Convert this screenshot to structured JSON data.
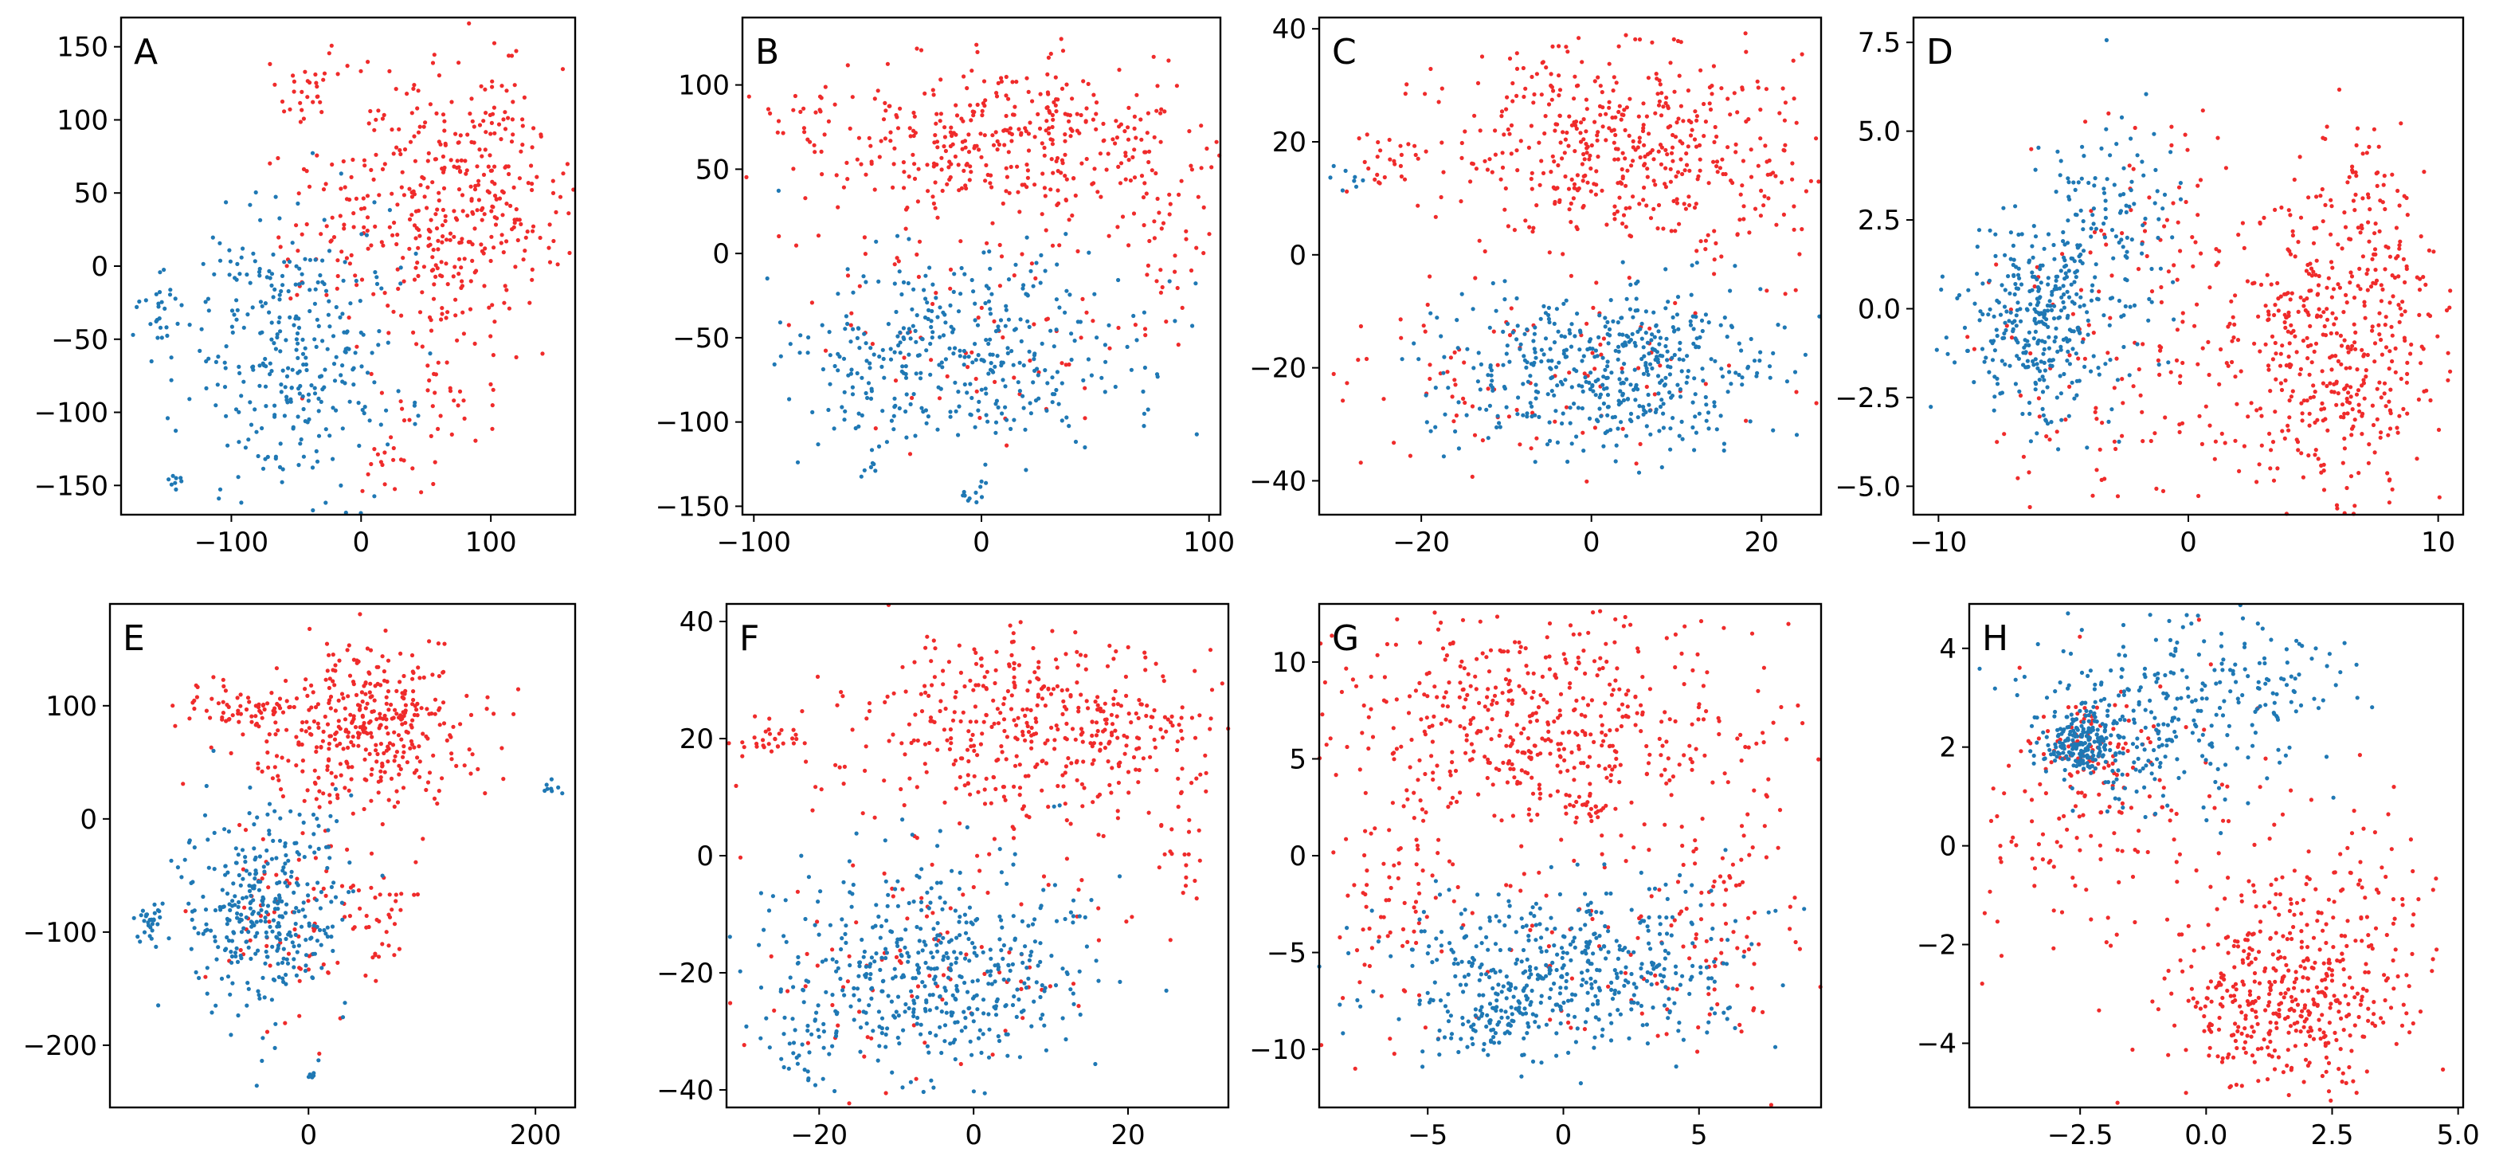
{
  "colors": {
    "class_a": "#ef2b2b",
    "class_b": "#1f78b4"
  },
  "chart_data": [
    {
      "type": "scatter",
      "panel_label": "A",
      "xlim": [
        -185,
        165
      ],
      "ylim": [
        -170,
        170
      ],
      "xticks": [
        {
          "value": -100,
          "label": "−100"
        },
        {
          "value": 0,
          "label": "0"
        },
        {
          "value": 100,
          "label": "100"
        }
      ],
      "yticks": [
        {
          "value": -150,
          "label": "−150"
        },
        {
          "value": -100,
          "label": "−100"
        },
        {
          "value": -50,
          "label": "−50"
        },
        {
          "value": 0,
          "label": "0"
        },
        {
          "value": 50,
          "label": "50"
        },
        {
          "value": 100,
          "label": "100"
        },
        {
          "value": 150,
          "label": "150"
        }
      ],
      "clusters": [
        {
          "class": "red",
          "cx": 75,
          "cy": 50,
          "sx": 45,
          "sy": 45,
          "n": 380
        },
        {
          "class": "red",
          "cx": -45,
          "cy": 125,
          "sx": 15,
          "sy": 12,
          "n": 30
        },
        {
          "class": "red",
          "cx": 60,
          "cy": -70,
          "sx": 25,
          "sy": 30,
          "n": 50
        },
        {
          "class": "red",
          "cx": 20,
          "cy": -140,
          "sx": 12,
          "sy": 8,
          "n": 15
        },
        {
          "class": "red",
          "cx": -10,
          "cy": 30,
          "sx": 30,
          "sy": 40,
          "n": 60
        },
        {
          "class": "blue",
          "cx": -55,
          "cy": -60,
          "sx": 40,
          "sy": 50,
          "n": 320
        },
        {
          "class": "blue",
          "cx": -155,
          "cy": -40,
          "sx": 10,
          "sy": 15,
          "n": 25
        },
        {
          "class": "blue",
          "cx": -140,
          "cy": -148,
          "sx": 6,
          "sy": 3,
          "n": 8
        }
      ]
    },
    {
      "type": "scatter",
      "panel_label": "B",
      "xlim": [
        -105,
        105
      ],
      "ylim": [
        -155,
        140
      ],
      "xticks": [
        {
          "value": -100,
          "label": "−100"
        },
        {
          "value": 0,
          "label": "0"
        },
        {
          "value": 100,
          "label": "100"
        }
      ],
      "yticks": [
        {
          "value": -150,
          "label": "−150"
        },
        {
          "value": -100,
          "label": "−100"
        },
        {
          "value": -50,
          "label": "−50"
        },
        {
          "value": 0,
          "label": "0"
        },
        {
          "value": 50,
          "label": "50"
        },
        {
          "value": 100,
          "label": "100"
        }
      ],
      "clusters": [
        {
          "class": "red",
          "cx": 15,
          "cy": 65,
          "sx": 45,
          "sy": 25,
          "n": 400
        },
        {
          "class": "red",
          "cx": 80,
          "cy": 20,
          "sx": 10,
          "sy": 30,
          "n": 40
        },
        {
          "class": "red",
          "cx": -80,
          "cy": 80,
          "sx": 10,
          "sy": 8,
          "n": 20
        },
        {
          "class": "red",
          "cx": 0,
          "cy": -40,
          "sx": 40,
          "sy": 35,
          "n": 80
        },
        {
          "class": "blue",
          "cx": -10,
          "cy": -60,
          "sx": 38,
          "sy": 30,
          "n": 380
        },
        {
          "class": "blue",
          "cx": -5,
          "cy": -142,
          "sx": 3,
          "sy": 3,
          "n": 10
        },
        {
          "class": "blue",
          "cx": -50,
          "cy": -128,
          "sx": 3,
          "sy": 3,
          "n": 6
        }
      ]
    },
    {
      "type": "scatter",
      "panel_label": "C",
      "xlim": [
        -32,
        27
      ],
      "ylim": [
        -46,
        42
      ],
      "xticks": [
        {
          "value": -20,
          "label": "−20"
        },
        {
          "value": 0,
          "label": "0"
        },
        {
          "value": 20,
          "label": "20"
        }
      ],
      "yticks": [
        {
          "value": -40,
          "label": "−40"
        },
        {
          "value": -20,
          "label": "−20"
        },
        {
          "value": 0,
          "label": "0"
        },
        {
          "value": 20,
          "label": "20"
        },
        {
          "value": 40,
          "label": "40"
        }
      ],
      "clusters": [
        {
          "class": "red",
          "cx": 3,
          "cy": 20,
          "sx": 10,
          "sy": 9,
          "n": 450
        },
        {
          "class": "red",
          "cx": -25,
          "cy": 17,
          "sx": 3,
          "sy": 3,
          "n": 25
        },
        {
          "class": "red",
          "cx": 20,
          "cy": 10,
          "sx": 4,
          "sy": 8,
          "n": 40
        },
        {
          "class": "red",
          "cx": -5,
          "cy": -20,
          "sx": 12,
          "sy": 10,
          "n": 100
        },
        {
          "class": "blue",
          "cx": 2,
          "cy": -20,
          "sx": 10,
          "sy": 7,
          "n": 480
        },
        {
          "class": "blue",
          "cx": -28,
          "cy": 13,
          "sx": 1.5,
          "sy": 1.5,
          "n": 8
        }
      ]
    },
    {
      "type": "scatter",
      "panel_label": "D",
      "xlim": [
        -11,
        11
      ],
      "ylim": [
        -5.8,
        8.2
      ],
      "xticks": [
        {
          "value": -10,
          "label": "−10"
        },
        {
          "value": 0,
          "label": "0"
        },
        {
          "value": 10,
          "label": "10"
        }
      ],
      "yticks": [
        {
          "value": -5,
          "label": "−5.0"
        },
        {
          "value": -2.5,
          "label": "−2.5"
        },
        {
          "value": 0,
          "label": "0.0"
        },
        {
          "value": 2.5,
          "label": "2.5"
        },
        {
          "value": 5,
          "label": "5.0"
        },
        {
          "value": 7.5,
          "label": "7.5"
        }
      ],
      "clusters": [
        {
          "class": "red",
          "cx": 6,
          "cy": -1,
          "sx": 2.2,
          "sy": 2.2,
          "n": 450
        },
        {
          "class": "red",
          "cx": 7,
          "cy": 3,
          "sx": 1.2,
          "sy": 1.2,
          "n": 60
        },
        {
          "class": "red",
          "cx": -2,
          "cy": -2,
          "sx": 3,
          "sy": 2,
          "n": 120
        },
        {
          "class": "red",
          "cx": -2,
          "cy": 3,
          "sx": 2,
          "sy": 1.5,
          "n": 40
        },
        {
          "class": "blue",
          "cx": -6,
          "cy": -0.5,
          "sx": 1.5,
          "sy": 1.5,
          "n": 330
        },
        {
          "class": "blue",
          "cx": -3,
          "cy": 2.5,
          "sx": 1.5,
          "sy": 1.5,
          "n": 120
        }
      ]
    },
    {
      "type": "scatter",
      "panel_label": "E",
      "xlim": [
        -175,
        235
      ],
      "ylim": [
        -255,
        190
      ],
      "xticks": [
        {
          "value": 0,
          "label": "0"
        },
        {
          "value": 200,
          "label": "200"
        }
      ],
      "yticks": [
        {
          "value": -200,
          "label": "−200"
        },
        {
          "value": -100,
          "label": "−100"
        },
        {
          "value": 0,
          "label": "0"
        },
        {
          "value": 100,
          "label": "100"
        }
      ],
      "clusters": [
        {
          "class": "red",
          "cx": 50,
          "cy": 80,
          "sx": 50,
          "sy": 35,
          "n": 400
        },
        {
          "class": "red",
          "cx": -60,
          "cy": 100,
          "sx": 25,
          "sy": 10,
          "n": 50
        },
        {
          "class": "red",
          "cx": 0,
          "cy": -80,
          "sx": 40,
          "sy": 50,
          "n": 90
        },
        {
          "class": "red",
          "cx": 70,
          "cy": -100,
          "sx": 10,
          "sy": 20,
          "n": 25
        },
        {
          "class": "blue",
          "cx": -40,
          "cy": -80,
          "sx": 35,
          "sy": 45,
          "n": 350
        },
        {
          "class": "blue",
          "cx": -140,
          "cy": -92,
          "sx": 8,
          "sy": 8,
          "n": 30
        },
        {
          "class": "blue",
          "cx": 215,
          "cy": 28,
          "sx": 4,
          "sy": 4,
          "n": 8
        },
        {
          "class": "blue",
          "cx": 3,
          "cy": -228,
          "sx": 2,
          "sy": 2,
          "n": 6
        }
      ]
    },
    {
      "type": "scatter",
      "panel_label": "F",
      "xlim": [
        -32,
        33
      ],
      "ylim": [
        -43,
        43
      ],
      "xticks": [
        {
          "value": -20,
          "label": "−20"
        },
        {
          "value": 0,
          "label": "0"
        },
        {
          "value": 20,
          "label": "20"
        }
      ],
      "yticks": [
        {
          "value": -40,
          "label": "−40"
        },
        {
          "value": -20,
          "label": "−20"
        },
        {
          "value": 0,
          "label": "0"
        },
        {
          "value": 20,
          "label": "20"
        },
        {
          "value": 40,
          "label": "40"
        }
      ],
      "clusters": [
        {
          "class": "red",
          "cx": 8,
          "cy": 22,
          "sx": 12,
          "sy": 8,
          "n": 450
        },
        {
          "class": "red",
          "cx": -26,
          "cy": 20,
          "sx": 3,
          "sy": 2,
          "n": 30
        },
        {
          "class": "red",
          "cx": 27,
          "cy": 0,
          "sx": 2,
          "sy": 6,
          "n": 25
        },
        {
          "class": "red",
          "cx": -5,
          "cy": -20,
          "sx": 12,
          "sy": 10,
          "n": 100
        },
        {
          "class": "blue",
          "cx": -5,
          "cy": -20,
          "sx": 10,
          "sy": 9,
          "n": 480
        },
        {
          "class": "blue",
          "cx": -22,
          "cy": -32,
          "sx": 2,
          "sy": 3,
          "n": 25
        }
      ]
    },
    {
      "type": "scatter",
      "panel_label": "G",
      "xlim": [
        -9,
        9.5
      ],
      "ylim": [
        -13,
        13
      ],
      "xticks": [
        {
          "value": -5,
          "label": "−5"
        },
        {
          "value": 0,
          "label": "0"
        },
        {
          "value": 5,
          "label": "5"
        }
      ],
      "yticks": [
        {
          "value": -10,
          "label": "−10"
        },
        {
          "value": -5,
          "label": "−5"
        },
        {
          "value": 0,
          "label": "0"
        },
        {
          "value": 5,
          "label": "5"
        },
        {
          "value": 10,
          "label": "10"
        }
      ],
      "clusters": [
        {
          "class": "red",
          "cx": -1,
          "cy": 7,
          "sx": 4,
          "sy": 2.8,
          "n": 500
        },
        {
          "class": "red",
          "cx": 6,
          "cy": -2,
          "sx": 1.5,
          "sy": 4,
          "n": 80
        },
        {
          "class": "red",
          "cx": -6,
          "cy": -2,
          "sx": 1.2,
          "sy": 4,
          "n": 70
        },
        {
          "class": "red",
          "cx": 1,
          "cy": 2.5,
          "sx": 0.4,
          "sy": 0.5,
          "n": 20
        },
        {
          "class": "red",
          "cx": 0,
          "cy": -4,
          "sx": 4,
          "sy": 3,
          "n": 80
        },
        {
          "class": "blue",
          "cx": 0,
          "cy": -6,
          "sx": 3.5,
          "sy": 2.2,
          "n": 470
        },
        {
          "class": "blue",
          "cx": -3,
          "cy": -8.5,
          "sx": 0.8,
          "sy": 0.7,
          "n": 60
        }
      ]
    },
    {
      "type": "scatter",
      "panel_label": "H",
      "xlim": [
        -4.7,
        5.1
      ],
      "ylim": [
        -5.3,
        4.9
      ],
      "xticks": [
        {
          "value": -2.5,
          "label": "−2.5"
        },
        {
          "value": 0,
          "label": "0.0"
        },
        {
          "value": 2.5,
          "label": "2.5"
        },
        {
          "value": 5,
          "label": "5.0"
        }
      ],
      "yticks": [
        {
          "value": -4,
          "label": "−4"
        },
        {
          "value": -2,
          "label": "−2"
        },
        {
          "value": 0,
          "label": "0"
        },
        {
          "value": 2,
          "label": "2"
        },
        {
          "value": 4,
          "label": "4"
        }
      ],
      "clusters": [
        {
          "class": "red",
          "cx": 1.5,
          "cy": -3.2,
          "sx": 1.2,
          "sy": 0.9,
          "n": 380
        },
        {
          "class": "red",
          "cx": 2.5,
          "cy": -1.5,
          "sx": 1,
          "sy": 1.2,
          "n": 120
        },
        {
          "class": "red",
          "cx": -2,
          "cy": 0.5,
          "sx": 1.5,
          "sy": 1.5,
          "n": 150
        },
        {
          "class": "red",
          "cx": -2.3,
          "cy": 2,
          "sx": 0.5,
          "sy": 0.4,
          "n": 60
        },
        {
          "class": "blue",
          "cx": -2.5,
          "cy": 2.1,
          "sx": 0.35,
          "sy": 0.3,
          "n": 180
        },
        {
          "class": "blue",
          "cx": -1,
          "cy": 2.5,
          "sx": 1.3,
          "sy": 1,
          "n": 260
        },
        {
          "class": "blue",
          "cx": 1,
          "cy": 3.5,
          "sx": 1,
          "sy": 0.6,
          "n": 60
        }
      ]
    }
  ]
}
